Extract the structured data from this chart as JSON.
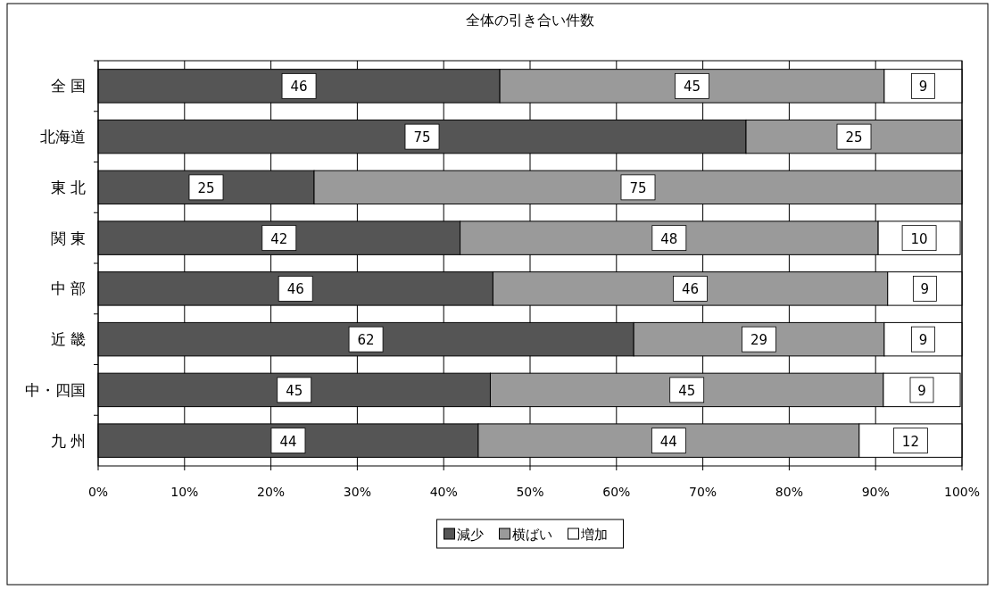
{
  "chart_data": {
    "type": "bar",
    "orientation": "horizontal",
    "stacked": true,
    "title": "全体の引き合い件数",
    "categories": [
      "全 国",
      "北海道",
      "東 北",
      "関 東",
      "中 部",
      "近 畿",
      "中・四国",
      "九 州"
    ],
    "series": [
      {
        "name": "減少",
        "color": "#555555",
        "values": [
          46.5,
          75,
          25,
          41.9,
          45.7,
          62,
          45.4,
          44
        ],
        "value_labels": [
          "46",
          "75",
          "25",
          "42",
          "46",
          "62",
          "45",
          "44"
        ]
      },
      {
        "name": "横ばい",
        "color": "#9a9a9a",
        "values": [
          44.5,
          25,
          75,
          48.4,
          45.7,
          29,
          45.5,
          44.1
        ],
        "value_labels": [
          "45",
          "25",
          "75",
          "48",
          "46",
          "29",
          "45",
          "44"
        ]
      },
      {
        "name": "増加",
        "color": "#ffffff",
        "values": [
          9,
          0,
          0,
          9.5,
          8.6,
          9,
          8.9,
          11.9
        ],
        "value_labels": [
          "9",
          null,
          null,
          "10",
          "9",
          "9",
          "9",
          "12"
        ]
      }
    ],
    "xlim": [
      0,
      100
    ],
    "xticks": [
      {
        "value": 0,
        "label": "0%"
      },
      {
        "value": 10,
        "label": "10%"
      },
      {
        "value": 20,
        "label": "20%"
      },
      {
        "value": 30,
        "label": "30%"
      },
      {
        "value": 40,
        "label": "40%"
      },
      {
        "value": 50,
        "label": "50%"
      },
      {
        "value": 60,
        "label": "60%"
      },
      {
        "value": 70,
        "label": "70%"
      },
      {
        "value": 80,
        "label": "80%"
      },
      {
        "value": 90,
        "label": "90%"
      },
      {
        "value": 100,
        "label": "100%"
      }
    ],
    "grid": "x",
    "legend": "bottom"
  }
}
